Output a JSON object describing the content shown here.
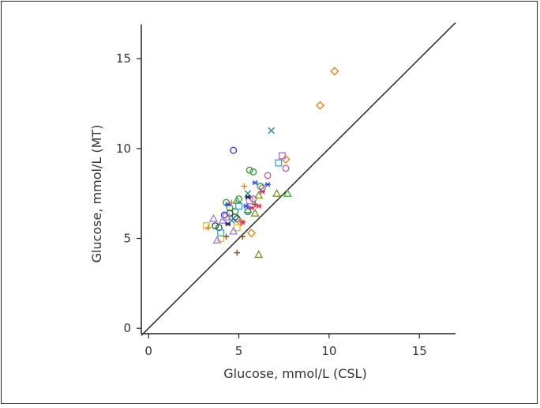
{
  "chart_data": {
    "type": "scatter",
    "title": "",
    "xlabel": "Glucose, mmol/L (CSL)",
    "ylabel": "Glucose, mmol/L (MT)",
    "xlim": [
      -0.4,
      17
    ],
    "ylim": [
      -0.3,
      16.9
    ],
    "xticks": [
      0,
      5,
      10,
      15
    ],
    "yticks": [
      0,
      5,
      10,
      15
    ],
    "xtick_labels": [
      "0",
      "5",
      "10",
      "15"
    ],
    "ytick_labels": [
      "0",
      "5",
      "10",
      "15"
    ],
    "identity_line": {
      "label": "line of identity y = x",
      "from": [
        -0.4,
        -0.4
      ],
      "to": [
        17,
        17
      ]
    },
    "grid": false,
    "legend": "none",
    "series": [
      {
        "name": "blue circle",
        "marker": "circle",
        "color": "#4040d0",
        "points": [
          [
            4.7,
            9.9
          ],
          [
            4.8,
            6.2
          ],
          [
            5.5,
            6.5
          ],
          [
            4.2,
            6.3
          ]
        ]
      },
      {
        "name": "green circle",
        "marker": "circle",
        "color": "#3aa03a",
        "points": [
          [
            5.6,
            8.8
          ],
          [
            5.8,
            8.7
          ],
          [
            4.3,
            7.0
          ],
          [
            5.0,
            7.2
          ],
          [
            4.5,
            6.7
          ],
          [
            6.2,
            7.9
          ],
          [
            4.8,
            6.5
          ]
        ]
      },
      {
        "name": "dark green circle",
        "marker": "circle",
        "color": "#1d5e3a",
        "points": [
          [
            3.7,
            5.7
          ],
          [
            4.9,
            6.1
          ],
          [
            4.5,
            6.4
          ],
          [
            3.9,
            5.6
          ]
        ]
      },
      {
        "name": "pink circle",
        "marker": "circle",
        "color": "#c060a0",
        "points": [
          [
            7.6,
            8.9
          ],
          [
            6.6,
            8.5
          ],
          [
            6.3,
            7.8
          ],
          [
            5.8,
            7.2
          ]
        ]
      },
      {
        "name": "orange diamond",
        "marker": "diamond",
        "color": "#e08a1a",
        "points": [
          [
            10.3,
            14.3
          ],
          [
            9.5,
            12.4
          ],
          [
            7.6,
            9.4
          ],
          [
            5.7,
            5.3
          ],
          [
            5.1,
            5.9
          ]
        ]
      },
      {
        "name": "teal cross",
        "marker": "x",
        "color": "#2a8a8a",
        "points": [
          [
            6.8,
            11.0
          ],
          [
            5.5,
            7.5
          ],
          [
            4.6,
            6.0
          ]
        ]
      },
      {
        "name": "magenta square",
        "marker": "square",
        "color": "#c070d0",
        "points": [
          [
            7.4,
            9.6
          ],
          [
            5.6,
            7.1
          ],
          [
            4.3,
            6.2
          ]
        ]
      },
      {
        "name": "light blue square",
        "marker": "square",
        "color": "#40a8e0",
        "points": [
          [
            7.2,
            9.2
          ],
          [
            5.0,
            6.8
          ],
          [
            4.0,
            5.3
          ]
        ]
      },
      {
        "name": "yellow square",
        "marker": "square",
        "color": "#e8c030",
        "points": [
          [
            3.2,
            5.7
          ],
          [
            4.0,
            5.0
          ],
          [
            4.9,
            5.6
          ]
        ]
      },
      {
        "name": "olive triangle",
        "marker": "triangle",
        "color": "#7a9a2a",
        "points": [
          [
            6.1,
            4.1
          ],
          [
            6.1,
            7.4
          ],
          [
            7.1,
            7.5
          ],
          [
            5.9,
            6.4
          ]
        ]
      },
      {
        "name": "green triangle",
        "marker": "triangle",
        "color": "#40b040",
        "points": [
          [
            7.7,
            7.5
          ],
          [
            4.9,
            7.1
          ],
          [
            5.5,
            6.6
          ]
        ]
      },
      {
        "name": "lavender triangle",
        "marker": "triangle",
        "color": "#a080e0",
        "points": [
          [
            3.8,
            4.9
          ],
          [
            3.6,
            6.1
          ],
          [
            4.7,
            5.4
          ],
          [
            4.1,
            6.0
          ]
        ]
      },
      {
        "name": "brown plus",
        "marker": "plus",
        "color": "#8a4a1a",
        "points": [
          [
            4.9,
            4.2
          ],
          [
            4.3,
            5.1
          ],
          [
            5.2,
            5.1
          ],
          [
            5.9,
            6.9
          ]
        ]
      },
      {
        "name": "orange plus",
        "marker": "plus",
        "color": "#e08a1a",
        "points": [
          [
            5.3,
            7.9
          ],
          [
            3.3,
            5.6
          ],
          [
            4.6,
            7.0
          ]
        ]
      },
      {
        "name": "blue asterisk",
        "marker": "asterisk",
        "color": "#3050e0",
        "points": [
          [
            5.9,
            8.1
          ],
          [
            6.6,
            8.0
          ],
          [
            4.4,
            6.9
          ],
          [
            5.4,
            6.8
          ]
        ]
      },
      {
        "name": "red asterisk",
        "marker": "asterisk",
        "color": "#d03060",
        "points": [
          [
            6.3,
            7.6
          ],
          [
            5.7,
            6.7
          ],
          [
            6.1,
            6.8
          ],
          [
            5.2,
            5.9
          ]
        ]
      },
      {
        "name": "dark asterisk",
        "marker": "asterisk",
        "color": "#202050",
        "points": [
          [
            5.5,
            7.3
          ],
          [
            4.4,
            5.8
          ]
        ]
      }
    ]
  }
}
